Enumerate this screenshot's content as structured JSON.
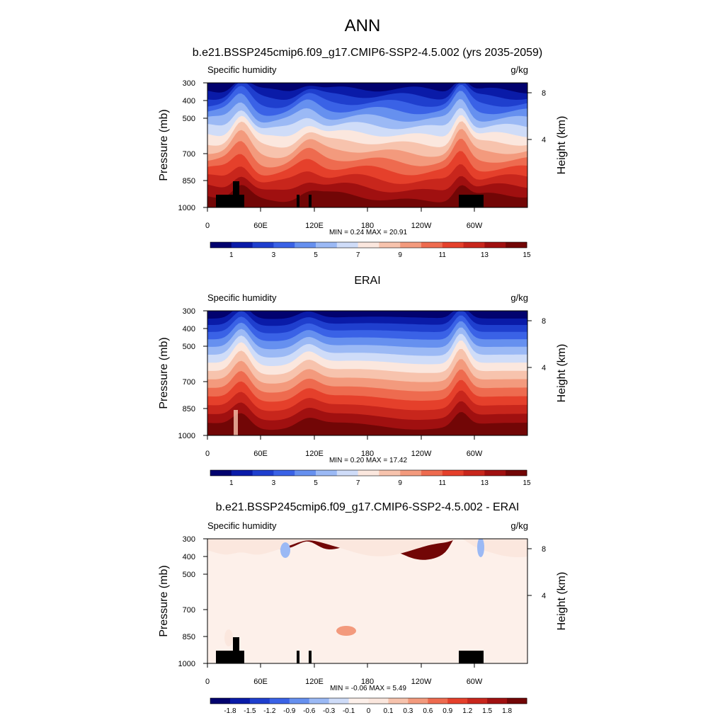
{
  "page_title": "ANN",
  "chart_data": [
    {
      "type": "heatmap",
      "title": "b.e21.BSSP245cmip6.f09_g17.CMIP6-SSP2-4.5.002 (yrs 2035-2059)",
      "left_label": "Specific humidity",
      "right_label": "g/kg",
      "ylabel": "Pressure (mb)",
      "ylabel_right": "Height (km)",
      "yticks": [
        "300",
        "400",
        "500",
        "700",
        "850",
        "1000"
      ],
      "yticks_right": [
        "8",
        "4"
      ],
      "xticks": [
        "0",
        "60E",
        "120E",
        "180",
        "120W",
        "60W"
      ],
      "stats": "MIN =   0.24  MAX =  20.91",
      "colorbar_labels": [
        "1",
        "3",
        "5",
        "7",
        "9",
        "11",
        "13",
        "15"
      ],
      "colors": [
        "#02026e",
        "#0a1ba8",
        "#1f3fce",
        "#3a62e6",
        "#6690ef",
        "#9bb9f5",
        "#cfdcf8",
        "#fbe7de",
        "#f7c3ad",
        "#f39a7d",
        "#ee6b4f",
        "#e5402b",
        "#c8261c",
        "#a01010",
        "#720606"
      ],
      "variant": "model"
    },
    {
      "type": "heatmap",
      "title": "ERAI",
      "left_label": "Specific humidity",
      "right_label": "g/kg",
      "ylabel": "Pressure (mb)",
      "ylabel_right": "Height (km)",
      "yticks": [
        "300",
        "400",
        "500",
        "700",
        "850",
        "1000"
      ],
      "yticks_right": [
        "8",
        "4"
      ],
      "xticks": [
        "0",
        "60E",
        "120E",
        "180",
        "120W",
        "60W"
      ],
      "stats": "MIN =   0.20  MAX =  17.42",
      "colorbar_labels": [
        "1",
        "3",
        "5",
        "7",
        "9",
        "11",
        "13",
        "15"
      ],
      "colors": [
        "#02026e",
        "#0a1ba8",
        "#1f3fce",
        "#3a62e6",
        "#6690ef",
        "#9bb9f5",
        "#cfdcf8",
        "#fbe7de",
        "#f7c3ad",
        "#f39a7d",
        "#ee6b4f",
        "#e5402b",
        "#c8261c",
        "#a01010",
        "#720606"
      ],
      "variant": "obs"
    },
    {
      "type": "heatmap",
      "title": "b.e21.BSSP245cmip6.f09_g17.CMIP6-SSP2-4.5.002 - ERAI",
      "left_label": "Specific humidity",
      "right_label": "g/kg",
      "ylabel": "Pressure (mb)",
      "ylabel_right": "Height (km)",
      "yticks": [
        "300",
        "400",
        "500",
        "700",
        "850",
        "1000"
      ],
      "yticks_right": [
        "8",
        "4"
      ],
      "xticks": [
        "0",
        "60E",
        "120E",
        "180",
        "120W",
        "60W"
      ],
      "stats": "MIN =  -0.06  MAX =   5.49",
      "colorbar_labels": [
        "-1.8",
        "-1.5",
        "-1.2",
        "-0.9",
        "-0.6",
        "-0.3",
        "-0.1",
        "0",
        "0.1",
        "0.3",
        "0.6",
        "0.9",
        "1.2",
        "1.5",
        "1.8"
      ],
      "colors": [
        "#02026e",
        "#0a1ba8",
        "#1f3fce",
        "#3a62e6",
        "#6690ef",
        "#9bb9f5",
        "#cfdcf8",
        "#fdf0ea",
        "#fbe7de",
        "#f7c3ad",
        "#f39a7d",
        "#ee6b4f",
        "#e5402b",
        "#c8261c",
        "#a01010",
        "#720606"
      ],
      "variant": "diff"
    }
  ]
}
